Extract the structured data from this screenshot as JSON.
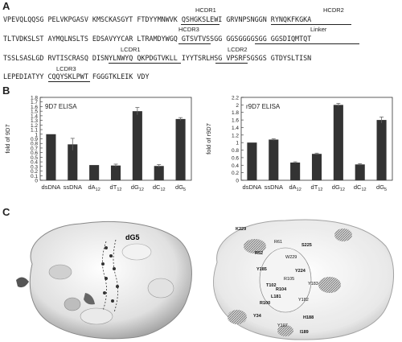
{
  "panels": {
    "a": "A",
    "b": "B",
    "c": "C"
  },
  "sequence": {
    "lines": [
      "VPEVQLQQSG PELVKPGASV KMSCKASGYT FTDYYMNWVK QSHGKSLEWI GRVNPSNGGN RYNQKFKGKA",
      "TLTVDKSLST AYMQLNSLTS EDSAVYYCAR LTRAMDYWGQ GTSVTVSSGG GGSGGGGSGG GGSDIQMTQT",
      "TSSLSASLGD RVTISCRASQ DISNYLNWYQ QKPDGTVKLL IYYTSRLHSG VPSRFSGSGS GTDYSLTISN",
      "LEPEDIATYY CQQYSKLPWT FGGGTKLEIK VDY"
    ],
    "labels": {
      "hcdr1": "HCDR1",
      "hcdr2": "HCDR2",
      "hcdr3": "HCDR3",
      "linker": "Linker",
      "lcdr1": "LCDR1",
      "lcdr2": "LCDR2",
      "lcdr3": "LCDR3"
    }
  },
  "chart_data": [
    {
      "type": "bar",
      "title": "9D7 ELISA",
      "ylabel": "fold of 9D7",
      "categories": [
        "dsDNA",
        "ssDNA",
        "dA12",
        "dT12",
        "dG12",
        "dC12",
        "dG5"
      ],
      "values": [
        1.0,
        0.78,
        0.33,
        0.32,
        1.5,
        0.31,
        1.33
      ],
      "errors": [
        0.0,
        0.13,
        0.0,
        0.03,
        0.08,
        0.03,
        0.03
      ],
      "ylim": [
        0,
        1.8
      ],
      "yticks": [
        "0",
        "0.1",
        "0.2",
        "0.3",
        "0.4",
        "0.5",
        "0.6",
        "0.7",
        "0.8",
        "0.9",
        "1",
        "1.1",
        "1.2",
        "1.3",
        "1.4",
        "1.5",
        "1.6",
        "1.7",
        "1.8"
      ],
      "bar_color": "#333333"
    },
    {
      "type": "bar",
      "title": "r9D7 ELISA",
      "ylabel": "fold of r9D7",
      "categories": [
        "dsDNA",
        "ssDNA",
        "dA12",
        "dT12",
        "dG12",
        "dC12",
        "dG5"
      ],
      "values": [
        1.0,
        1.08,
        0.47,
        0.7,
        2.0,
        0.42,
        1.6
      ],
      "errors": [
        0.0,
        0.02,
        0.02,
        0.02,
        0.04,
        0.02,
        0.08
      ],
      "ylim": [
        0,
        2.2
      ],
      "yticks": [
        "0",
        "0.2",
        "0.4",
        "0.6",
        "0.8",
        "1",
        "1.2",
        "1.4",
        "1.6",
        "1.8",
        "2",
        "2.2"
      ],
      "bar_color": "#333333"
    }
  ],
  "structure": {
    "left_label": "dG5",
    "residues": [
      "K229",
      "R61",
      "S225",
      "R52",
      "W229",
      "Y185",
      "Y224",
      "R105",
      "T102",
      "R104",
      "Y183",
      "L181",
      "R100",
      "Y182",
      "Y34",
      "H188",
      "Y107",
      "I189"
    ]
  }
}
